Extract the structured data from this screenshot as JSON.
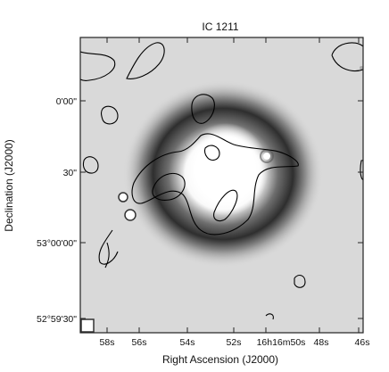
{
  "figure": {
    "title": "IC 1211",
    "xlabel": "Right Ascension (J2000)",
    "ylabel": "Declination (J2000)",
    "x_ticks": [
      "58s",
      "56s",
      "54s",
      "52s",
      "16h16m50s",
      "48s",
      "46s"
    ],
    "y_ticks": [
      "0'00\"",
      "30\"",
      "53°00'00\"",
      "52°59'30\""
    ],
    "image": "greyscale galaxy image with white-light contour overlay"
  }
}
